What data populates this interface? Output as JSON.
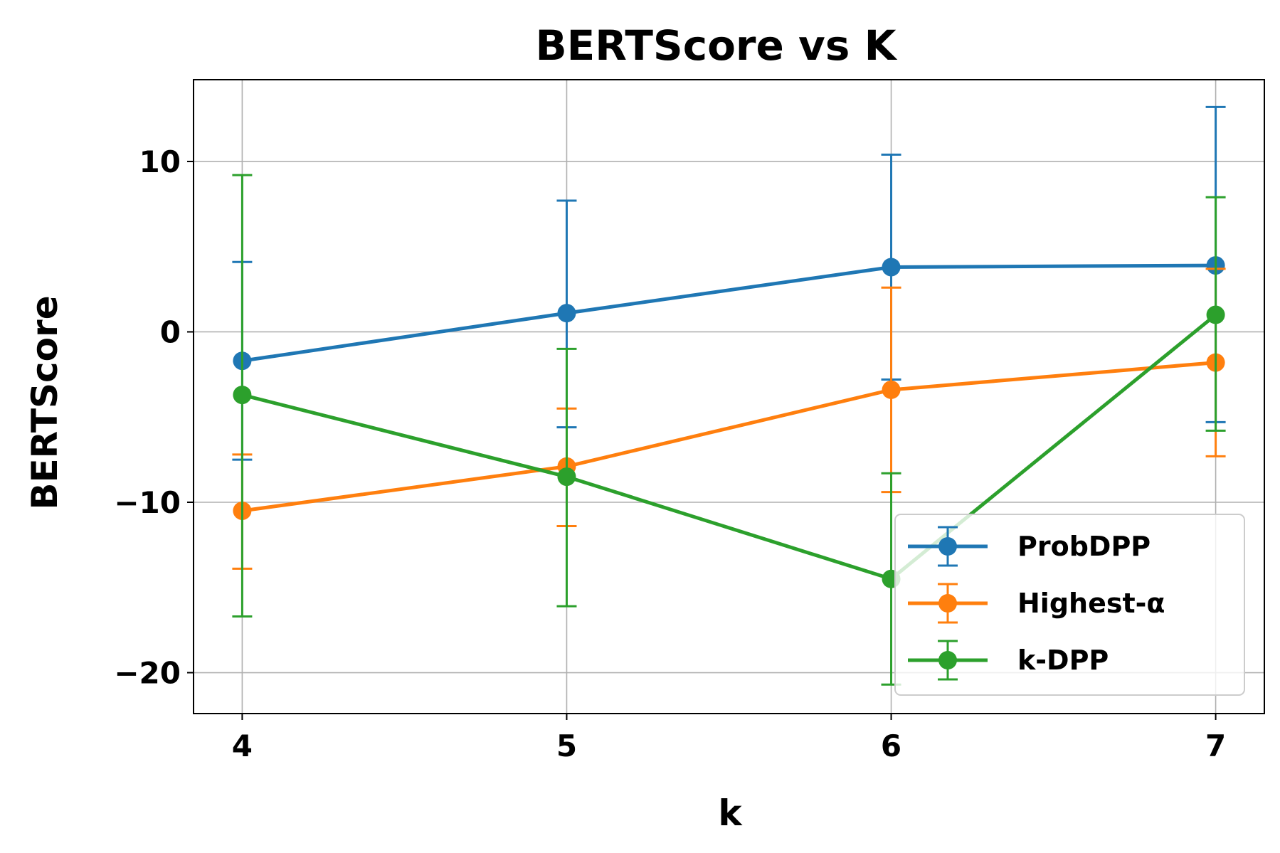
{
  "chart_data": {
    "type": "line",
    "title": "BERTScore vs K",
    "xlabel": "k",
    "ylabel": "BERTScore",
    "x": [
      4,
      5,
      6,
      7
    ],
    "xlim": [
      3.85,
      7.15
    ],
    "ylim": [
      -22.4,
      14.8
    ],
    "xticks": [
      4,
      5,
      6,
      7
    ],
    "xtick_labels": [
      "4",
      "5",
      "6",
      "7"
    ],
    "yticks": [
      -20,
      -10,
      0,
      10
    ],
    "ytick_labels": [
      "−20",
      "−10",
      "0",
      "10"
    ],
    "grid": true,
    "legend_position": "lower-right",
    "series": [
      {
        "name": "ProbDPP",
        "color": "#1f77b4",
        "values": [
          -1.7,
          1.1,
          3.8,
          3.9
        ],
        "err_low": [
          -7.5,
          -5.6,
          -2.8,
          -5.3
        ],
        "err_high": [
          4.1,
          7.7,
          10.4,
          13.2
        ]
      },
      {
        "name": "Highest-α",
        "color": "#ff7f0e",
        "values": [
          -10.5,
          -7.9,
          -3.4,
          -1.8
        ],
        "err_low": [
          -13.9,
          -11.4,
          -9.4,
          -7.3
        ],
        "err_high": [
          -7.2,
          -4.5,
          2.6,
          3.7
        ]
      },
      {
        "name": "k-DPP",
        "color": "#2ca02c",
        "values": [
          -3.7,
          -8.5,
          -14.5,
          1.0
        ],
        "err_low": [
          -16.7,
          -16.1,
          -20.7,
          -5.8
        ],
        "err_high": [
          9.2,
          -1.0,
          -8.3,
          7.9
        ]
      }
    ]
  }
}
